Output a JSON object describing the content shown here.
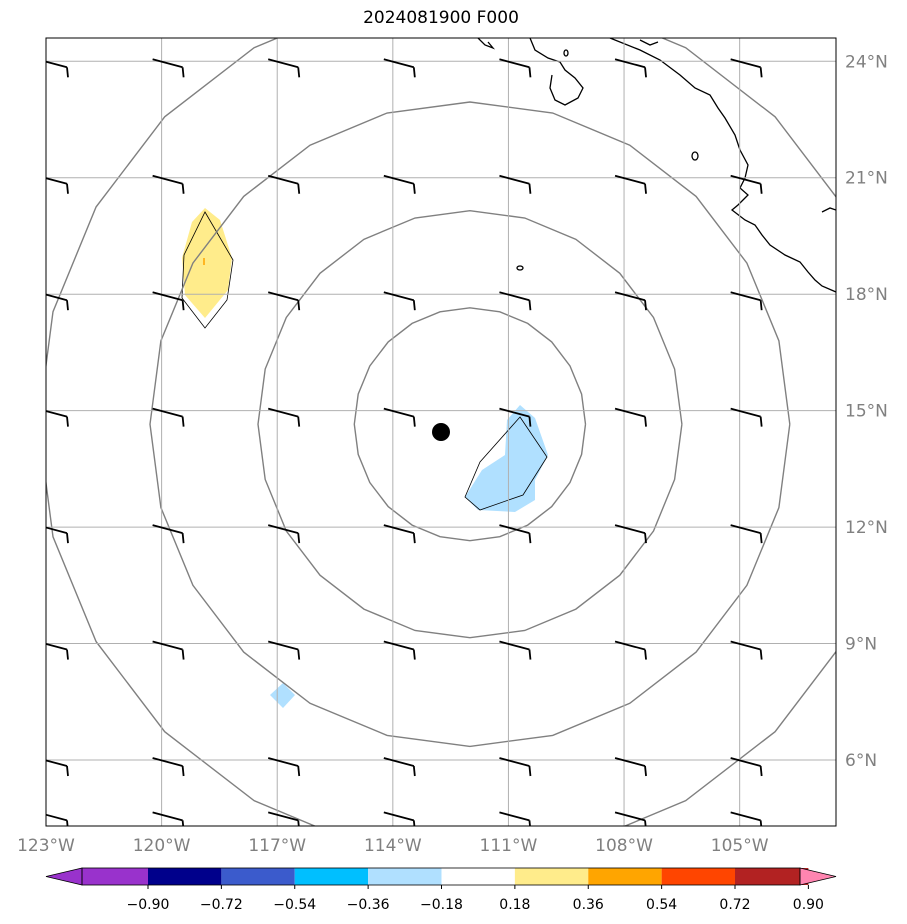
{
  "title": "2024081900 F000",
  "map": {
    "lon_range": [
      -123,
      -102.5
    ],
    "lat_range": [
      4.3,
      24.6
    ],
    "lon_ticks": [
      "123°W",
      "120°W",
      "117°W",
      "114°W",
      "111°W",
      "108°W",
      "105°W"
    ],
    "lon_values": [
      -123,
      -120,
      -117,
      -114,
      -111,
      -108,
      -105
    ],
    "lat_ticks": [
      "24°N",
      "21°N",
      "18°N",
      "15°N",
      "12°N",
      "9°N",
      "6°N"
    ],
    "lat_values": [
      24,
      21,
      18,
      15,
      12,
      9,
      6
    ],
    "storm_center": {
      "lon": -112.0,
      "lat": 14.65
    },
    "range_rings_deg": [
      3,
      5.5,
      8.3,
      11.2
    ],
    "grid_color": "#b0b0b0",
    "ring_color": "#808080"
  },
  "colorbar": {
    "levels": [
      "−0.90",
      "−0.72",
      "−0.54",
      "−0.36",
      "−0.18",
      "0.18",
      "0.36",
      "0.54",
      "0.72",
      "0.90"
    ],
    "colors": [
      "#9932cc",
      "#00008b",
      "#3b5bcc",
      "#00bfff",
      "#b0e0ff",
      "#ffffff",
      "#ffec8b",
      "#ffa500",
      "#ff4500",
      "#b22222",
      "#ff85b0"
    ]
  },
  "shaded_regions": [
    {
      "name": "positive-anomaly-west",
      "color": "#ffec8b"
    },
    {
      "name": "negative-anomaly-center",
      "color": "#b0e0ff"
    },
    {
      "name": "negative-anomaly-south",
      "color": "#b0e0ff"
    }
  ]
}
